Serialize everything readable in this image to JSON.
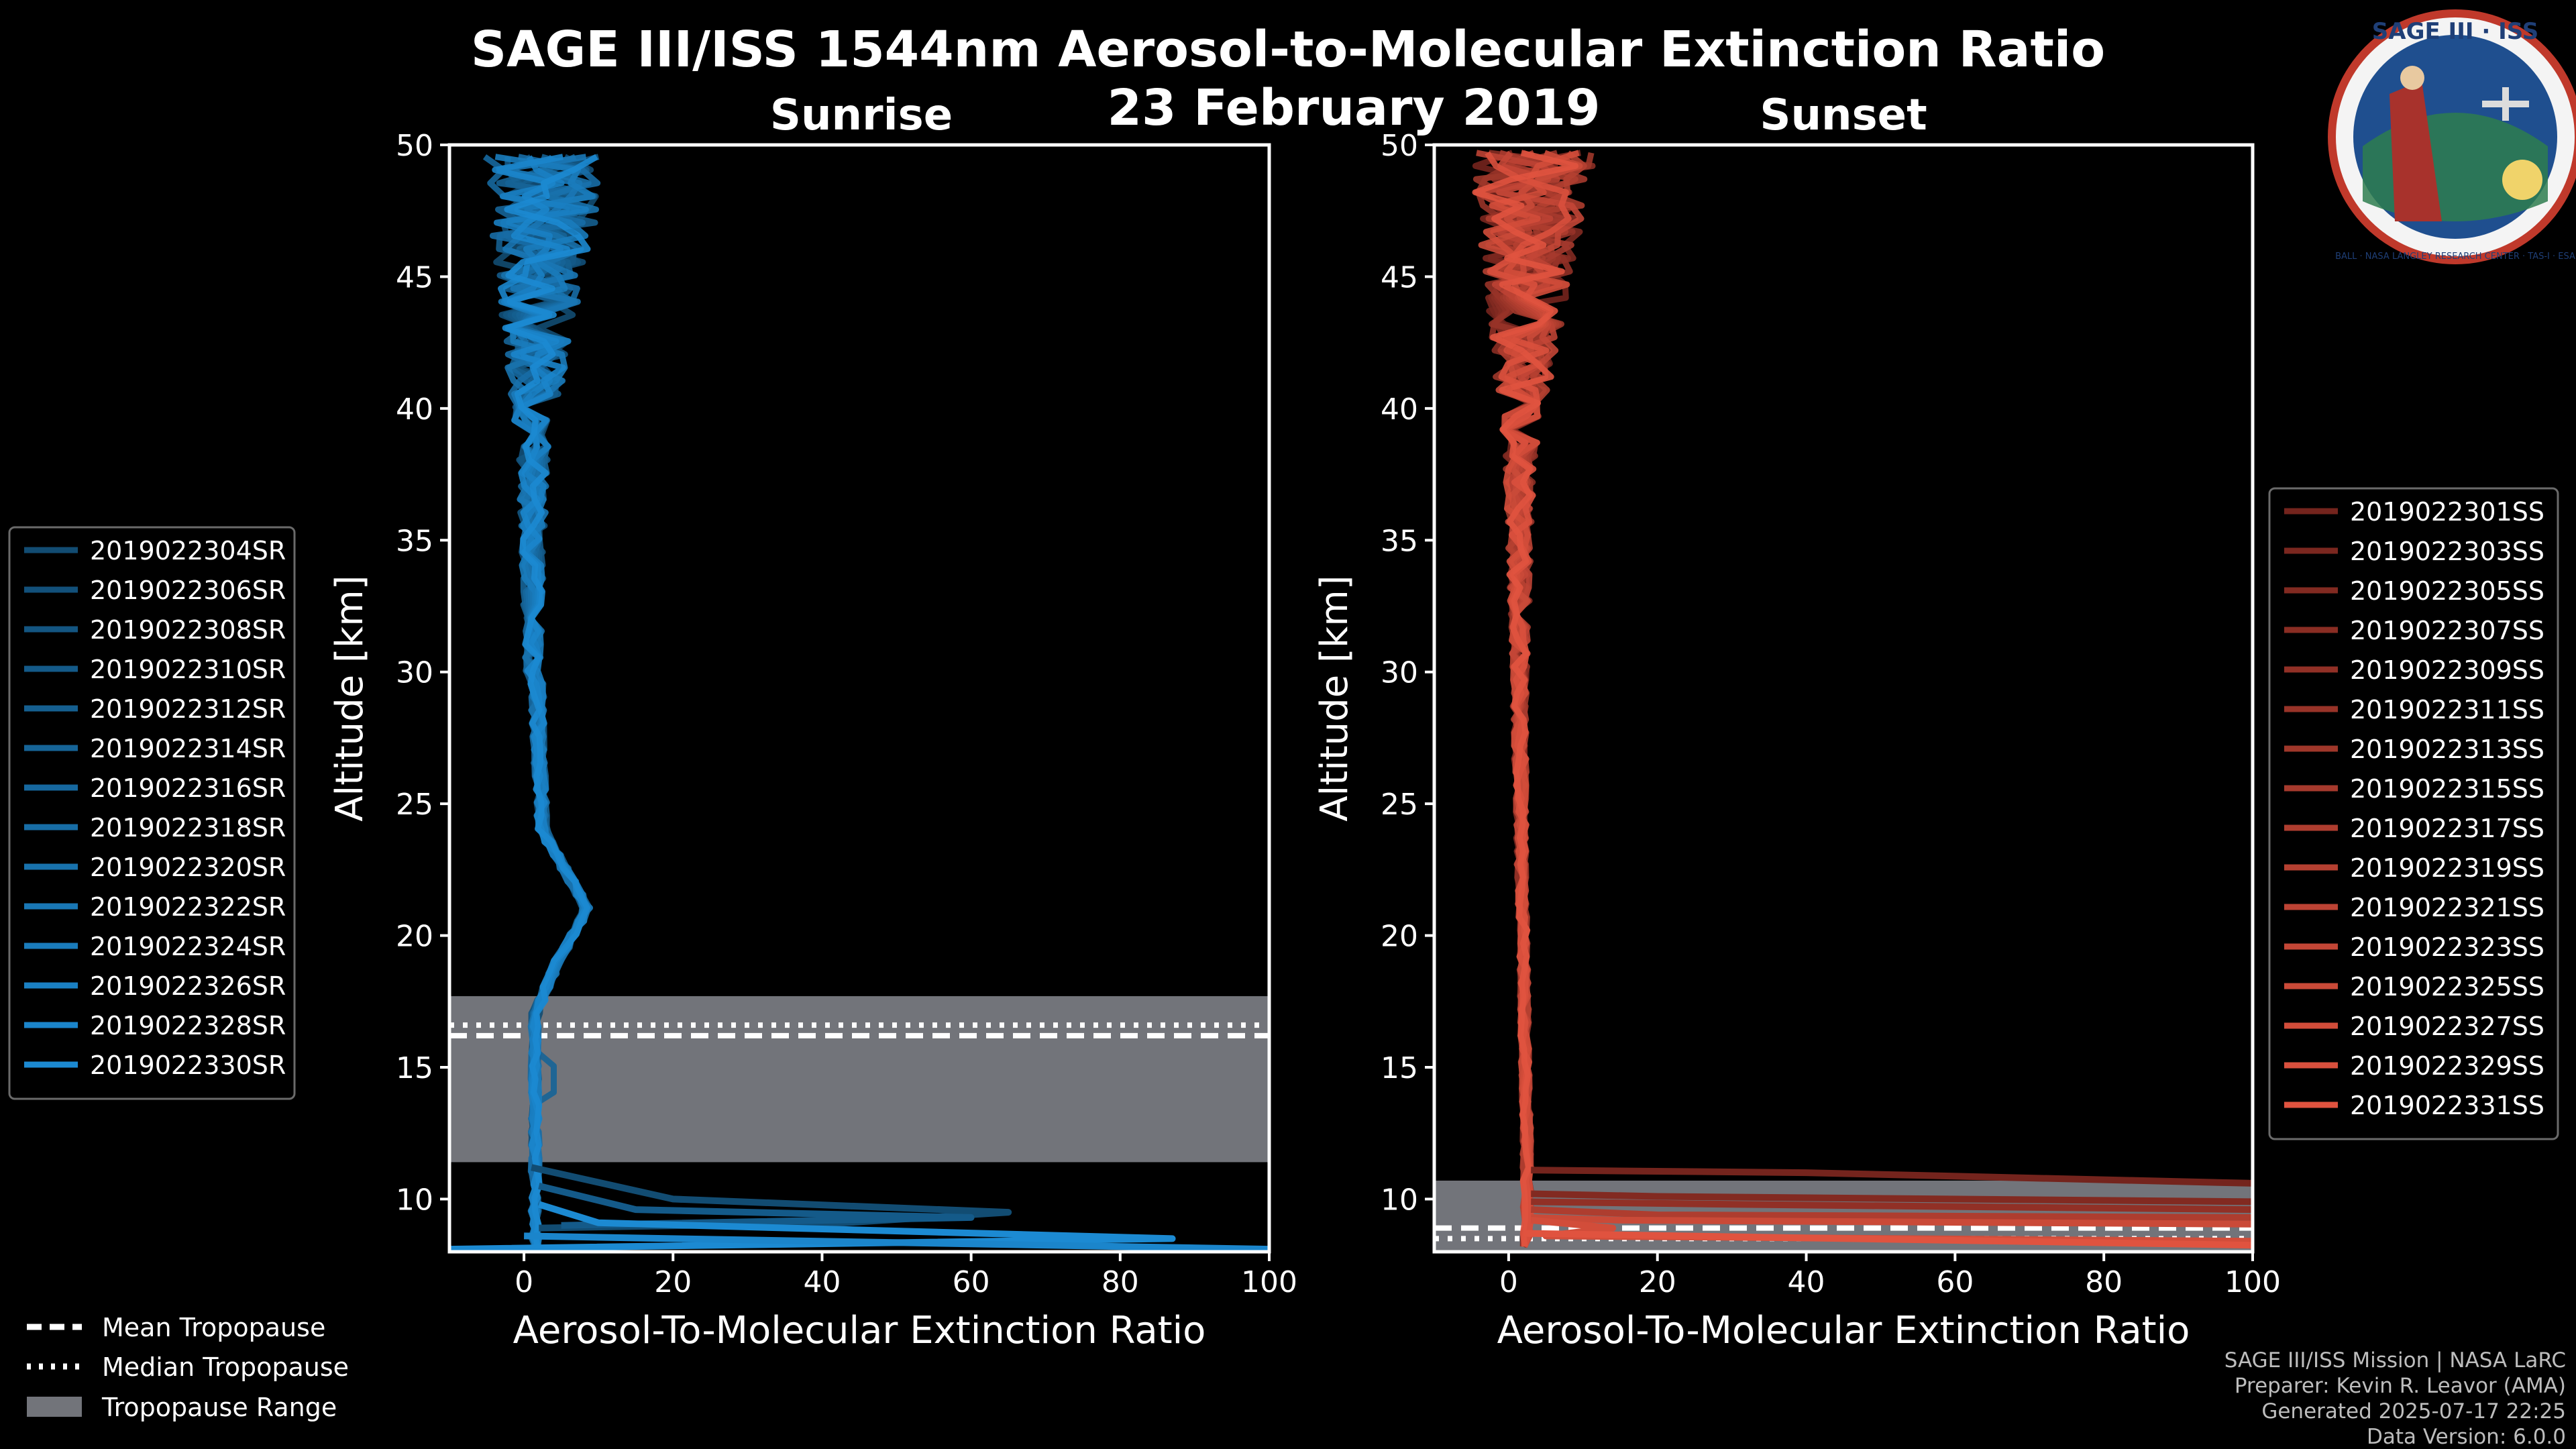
{
  "title_line1": "SAGE III/ISS 1544nm Aerosol-to-Molecular Extinction Ratio",
  "title_line2": "23 February 2019",
  "logo": {
    "name": "SAGE III · ISS",
    "ring_text": "BALL · NASA LANGLEY RESEARCH CENTER · TAS-I · ESA"
  },
  "footer": [
    "SAGE III/ISS Mission | NASA LaRC",
    "Preparer: Kevin R. Leavor (AMA)",
    "Generated 2025-07-17 22:25",
    "Data Version: 6.0.0"
  ],
  "tropo_legend": {
    "mean": "Mean Tropopause",
    "median": "Median Tropopause",
    "range": "Tropopause Range"
  },
  "colors": {
    "sunrise": "#1c8ad2",
    "sunset": "#e0533f",
    "tropo_band": "#72747a"
  },
  "chart_data": [
    {
      "type": "line",
      "panel": "sunrise",
      "title": "Sunrise",
      "xlabel": "Aerosol-To-Molecular Extinction Ratio",
      "ylabel": "Altitude [km]",
      "xlim": [
        -10,
        100
      ],
      "ylim": [
        8,
        50
      ],
      "xticks": [
        "0",
        "20",
        "40",
        "60",
        "80",
        "100"
      ],
      "xtick_values": [
        0,
        20,
        40,
        60,
        80,
        100
      ],
      "yticks": [
        "10",
        "15",
        "20",
        "25",
        "30",
        "35",
        "40",
        "45",
        "50"
      ],
      "ytick_values": [
        10,
        15,
        20,
        25,
        30,
        35,
        40,
        45,
        50
      ],
      "legend": [
        "2019022304SR",
        "2019022306SR",
        "2019022308SR",
        "2019022310SR",
        "2019022312SR",
        "2019022314SR",
        "2019022316SR",
        "2019022318SR",
        "2019022320SR",
        "2019022322SR",
        "2019022324SR",
        "2019022326SR",
        "2019022328SR",
        "2019022330SR"
      ],
      "tropopause": {
        "mean_km": 16.2,
        "median_km": 16.6,
        "range_km": [
          11.4,
          17.7
        ]
      },
      "spikes": [
        {
          "series": "2019022304SR",
          "points": [
            [
              1,
              11.2
            ],
            [
              20,
              10.0
            ],
            [
              65,
              9.5
            ],
            [
              43,
              9.1
            ],
            [
              2,
              8.9
            ]
          ]
        },
        {
          "series": "2019022310SR",
          "points": [
            [
              2,
              10.5
            ],
            [
              15,
              9.6
            ],
            [
              60,
              9.3
            ],
            [
              5,
              9.0
            ]
          ]
        },
        {
          "series": "2019022330SR",
          "points": [
            [
              2,
              9.8
            ],
            [
              10,
              9.1
            ],
            [
              87,
              8.5
            ],
            [
              -10,
              8.1
            ],
            [
              0,
              8.1
            ]
          ]
        },
        {
          "series": "2019022328SR",
          "points": [
            [
              0,
              8.6
            ],
            [
              100,
              8.1
            ]
          ]
        }
      ]
    },
    {
      "type": "line",
      "panel": "sunset",
      "title": "Sunset",
      "xlabel": "Aerosol-To-Molecular Extinction Ratio",
      "ylabel": "Altitude [km]",
      "xlim": [
        -10,
        100
      ],
      "ylim": [
        8,
        50
      ],
      "xticks": [
        "0",
        "20",
        "40",
        "60",
        "80",
        "100"
      ],
      "xtick_values": [
        0,
        20,
        40,
        60,
        80,
        100
      ],
      "yticks": [
        "10",
        "15",
        "20",
        "25",
        "30",
        "35",
        "40",
        "45",
        "50"
      ],
      "ytick_values": [
        10,
        15,
        20,
        25,
        30,
        35,
        40,
        45,
        50
      ],
      "legend": [
        "2019022301SS",
        "2019022303SS",
        "2019022305SS",
        "2019022307SS",
        "2019022309SS",
        "2019022311SS",
        "2019022313SS",
        "2019022315SS",
        "2019022317SS",
        "2019022319SS",
        "2019022321SS",
        "2019022323SS",
        "2019022325SS",
        "2019022327SS",
        "2019022329SS",
        "2019022331SS"
      ],
      "tropopause": {
        "mean_km": 8.9,
        "median_km": 8.5,
        "range_km": [
          8.0,
          10.7
        ]
      },
      "spikes": [
        {
          "series": "2019022301SS",
          "points": [
            [
              3,
              11.1
            ],
            [
              40,
              11.0
            ],
            [
              100,
              10.6
            ]
          ]
        },
        {
          "series": "2019022305SS",
          "points": [
            [
              3,
              10.2
            ],
            [
              20,
              10.1
            ],
            [
              100,
              9.9
            ]
          ]
        },
        {
          "series": "2019022309SS",
          "points": [
            [
              3,
              9.9
            ],
            [
              30,
              9.8
            ],
            [
              100,
              9.6
            ]
          ]
        },
        {
          "series": "2019022317SS",
          "points": [
            [
              3,
              9.6
            ],
            [
              20,
              9.4
            ],
            [
              100,
              9.3
            ]
          ]
        },
        {
          "series": "2019022325SS",
          "points": [
            [
              3,
              9.3
            ],
            [
              15,
              9.2
            ],
            [
              100,
              9.05
            ]
          ]
        },
        {
          "series": "2019022327SS",
          "points": [
            [
              3,
              9.2
            ],
            [
              14,
              8.9
            ],
            [
              5,
              8.6
            ],
            [
              100,
              8.4
            ]
          ]
        },
        {
          "series": "2019022331SS",
          "points": [
            [
              2,
              8.7
            ],
            [
              100,
              8.25
            ]
          ]
        }
      ]
    }
  ]
}
